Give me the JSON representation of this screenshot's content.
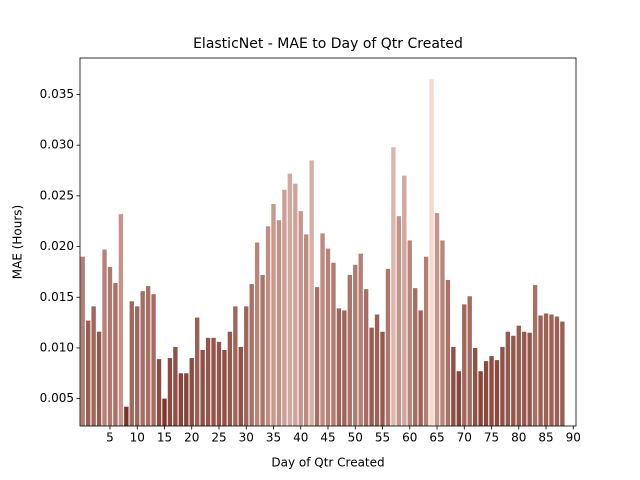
{
  "chart_data": {
    "type": "bar",
    "title": "ElasticNet - MAE to Day of Qtr Created",
    "xlabel": "Day of Qtr Created",
    "ylabel": "MAE (Hours)",
    "x": [
      0,
      1,
      2,
      3,
      4,
      5,
      6,
      7,
      8,
      9,
      10,
      11,
      12,
      13,
      14,
      15,
      16,
      17,
      18,
      19,
      20,
      21,
      22,
      23,
      24,
      25,
      26,
      27,
      28,
      29,
      30,
      31,
      32,
      33,
      34,
      35,
      36,
      37,
      38,
      39,
      40,
      41,
      42,
      43,
      44,
      45,
      46,
      47,
      48,
      49,
      50,
      51,
      52,
      53,
      54,
      55,
      56,
      57,
      58,
      59,
      60,
      61,
      62,
      63,
      64,
      65,
      66,
      67,
      68,
      69,
      70,
      71,
      72,
      73,
      74,
      75,
      76,
      77,
      78,
      79,
      80,
      81,
      82,
      83,
      84,
      85,
      86,
      87,
      88
    ],
    "values": [
      0.019,
      0.0127,
      0.0141,
      0.0116,
      0.0197,
      0.018,
      0.0164,
      0.0232,
      0.0042,
      0.0146,
      0.0141,
      0.0156,
      0.0161,
      0.0153,
      0.0089,
      0.005,
      0.009,
      0.0101,
      0.0075,
      0.0075,
      0.009,
      0.013,
      0.0098,
      0.011,
      0.011,
      0.0106,
      0.0098,
      0.0116,
      0.0141,
      0.0101,
      0.0141,
      0.0163,
      0.0204,
      0.0172,
      0.022,
      0.0242,
      0.0226,
      0.0256,
      0.0272,
      0.0262,
      0.0235,
      0.0212,
      0.0285,
      0.016,
      0.0213,
      0.0198,
      0.0184,
      0.0139,
      0.0137,
      0.0172,
      0.0182,
      0.0193,
      0.0158,
      0.012,
      0.0133,
      0.0116,
      0.0178,
      0.0298,
      0.023,
      0.027,
      0.0206,
      0.0159,
      0.0137,
      0.019,
      0.0365,
      0.0233,
      0.0206,
      0.0167,
      0.0101,
      0.0077,
      0.0143,
      0.0151,
      0.01,
      0.0077,
      0.0087,
      0.0092,
      0.0088,
      0.0101,
      0.0116,
      0.0112,
      0.0122,
      0.0116,
      0.0115,
      0.0162,
      0.0132,
      0.0134,
      0.0133,
      0.0131,
      0.0126
    ],
    "color_low": "#7a3328",
    "color_high": "#f7d8ce",
    "xlim": [
      -0.5,
      90.5
    ],
    "xticks": [
      5,
      10,
      15,
      20,
      25,
      30,
      35,
      40,
      45,
      50,
      55,
      60,
      65,
      70,
      75,
      80,
      85,
      90
    ],
    "ylim": [
      0.0023,
      0.0386
    ],
    "yticks": [
      0.005,
      {
        "value": 0.01,
        "label": "0.010"
      },
      0.015,
      {
        "value": 0.02,
        "label": "0.020"
      },
      0.025,
      {
        "value": 0.03,
        "label": "0.030"
      },
      0.035
    ]
  }
}
